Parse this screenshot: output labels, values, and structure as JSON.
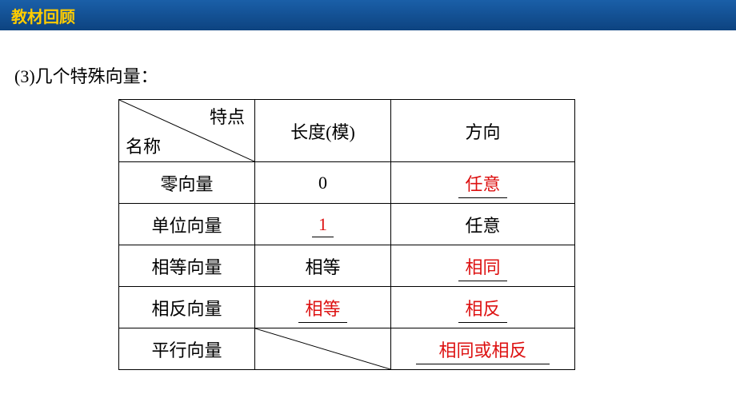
{
  "header": {
    "title": "教材回顾"
  },
  "subtitle": "(3)几个特殊向量：",
  "table": {
    "header": {
      "diag_top": "特点",
      "diag_bot": "名称",
      "col_len": "长度(模)",
      "col_dir": "方向"
    },
    "rows": [
      {
        "name": "零向量",
        "len": "0",
        "len_red": false,
        "len_ul": false,
        "dir": "任意",
        "dir_red": true,
        "dir_ul": true,
        "dir_wide": false
      },
      {
        "name": "单位向量",
        "len": "1",
        "len_red": true,
        "len_ul": true,
        "dir": "任意",
        "dir_red": false,
        "dir_ul": false,
        "dir_wide": false
      },
      {
        "name": "相等向量",
        "len": "相等",
        "len_red": false,
        "len_ul": false,
        "dir": "相同",
        "dir_red": true,
        "dir_ul": true,
        "dir_wide": false
      },
      {
        "name": "相反向量",
        "len": "相等",
        "len_red": true,
        "len_ul": true,
        "dir": "相反",
        "dir_red": true,
        "dir_ul": true,
        "dir_wide": false
      },
      {
        "name": "平行向量",
        "len": "",
        "len_red": false,
        "len_ul": false,
        "len_diag": true,
        "dir": "相同或相反",
        "dir_red": true,
        "dir_ul": true,
        "dir_wide": true
      }
    ],
    "colors": {
      "red": "#dd1111",
      "border": "#000000"
    }
  }
}
